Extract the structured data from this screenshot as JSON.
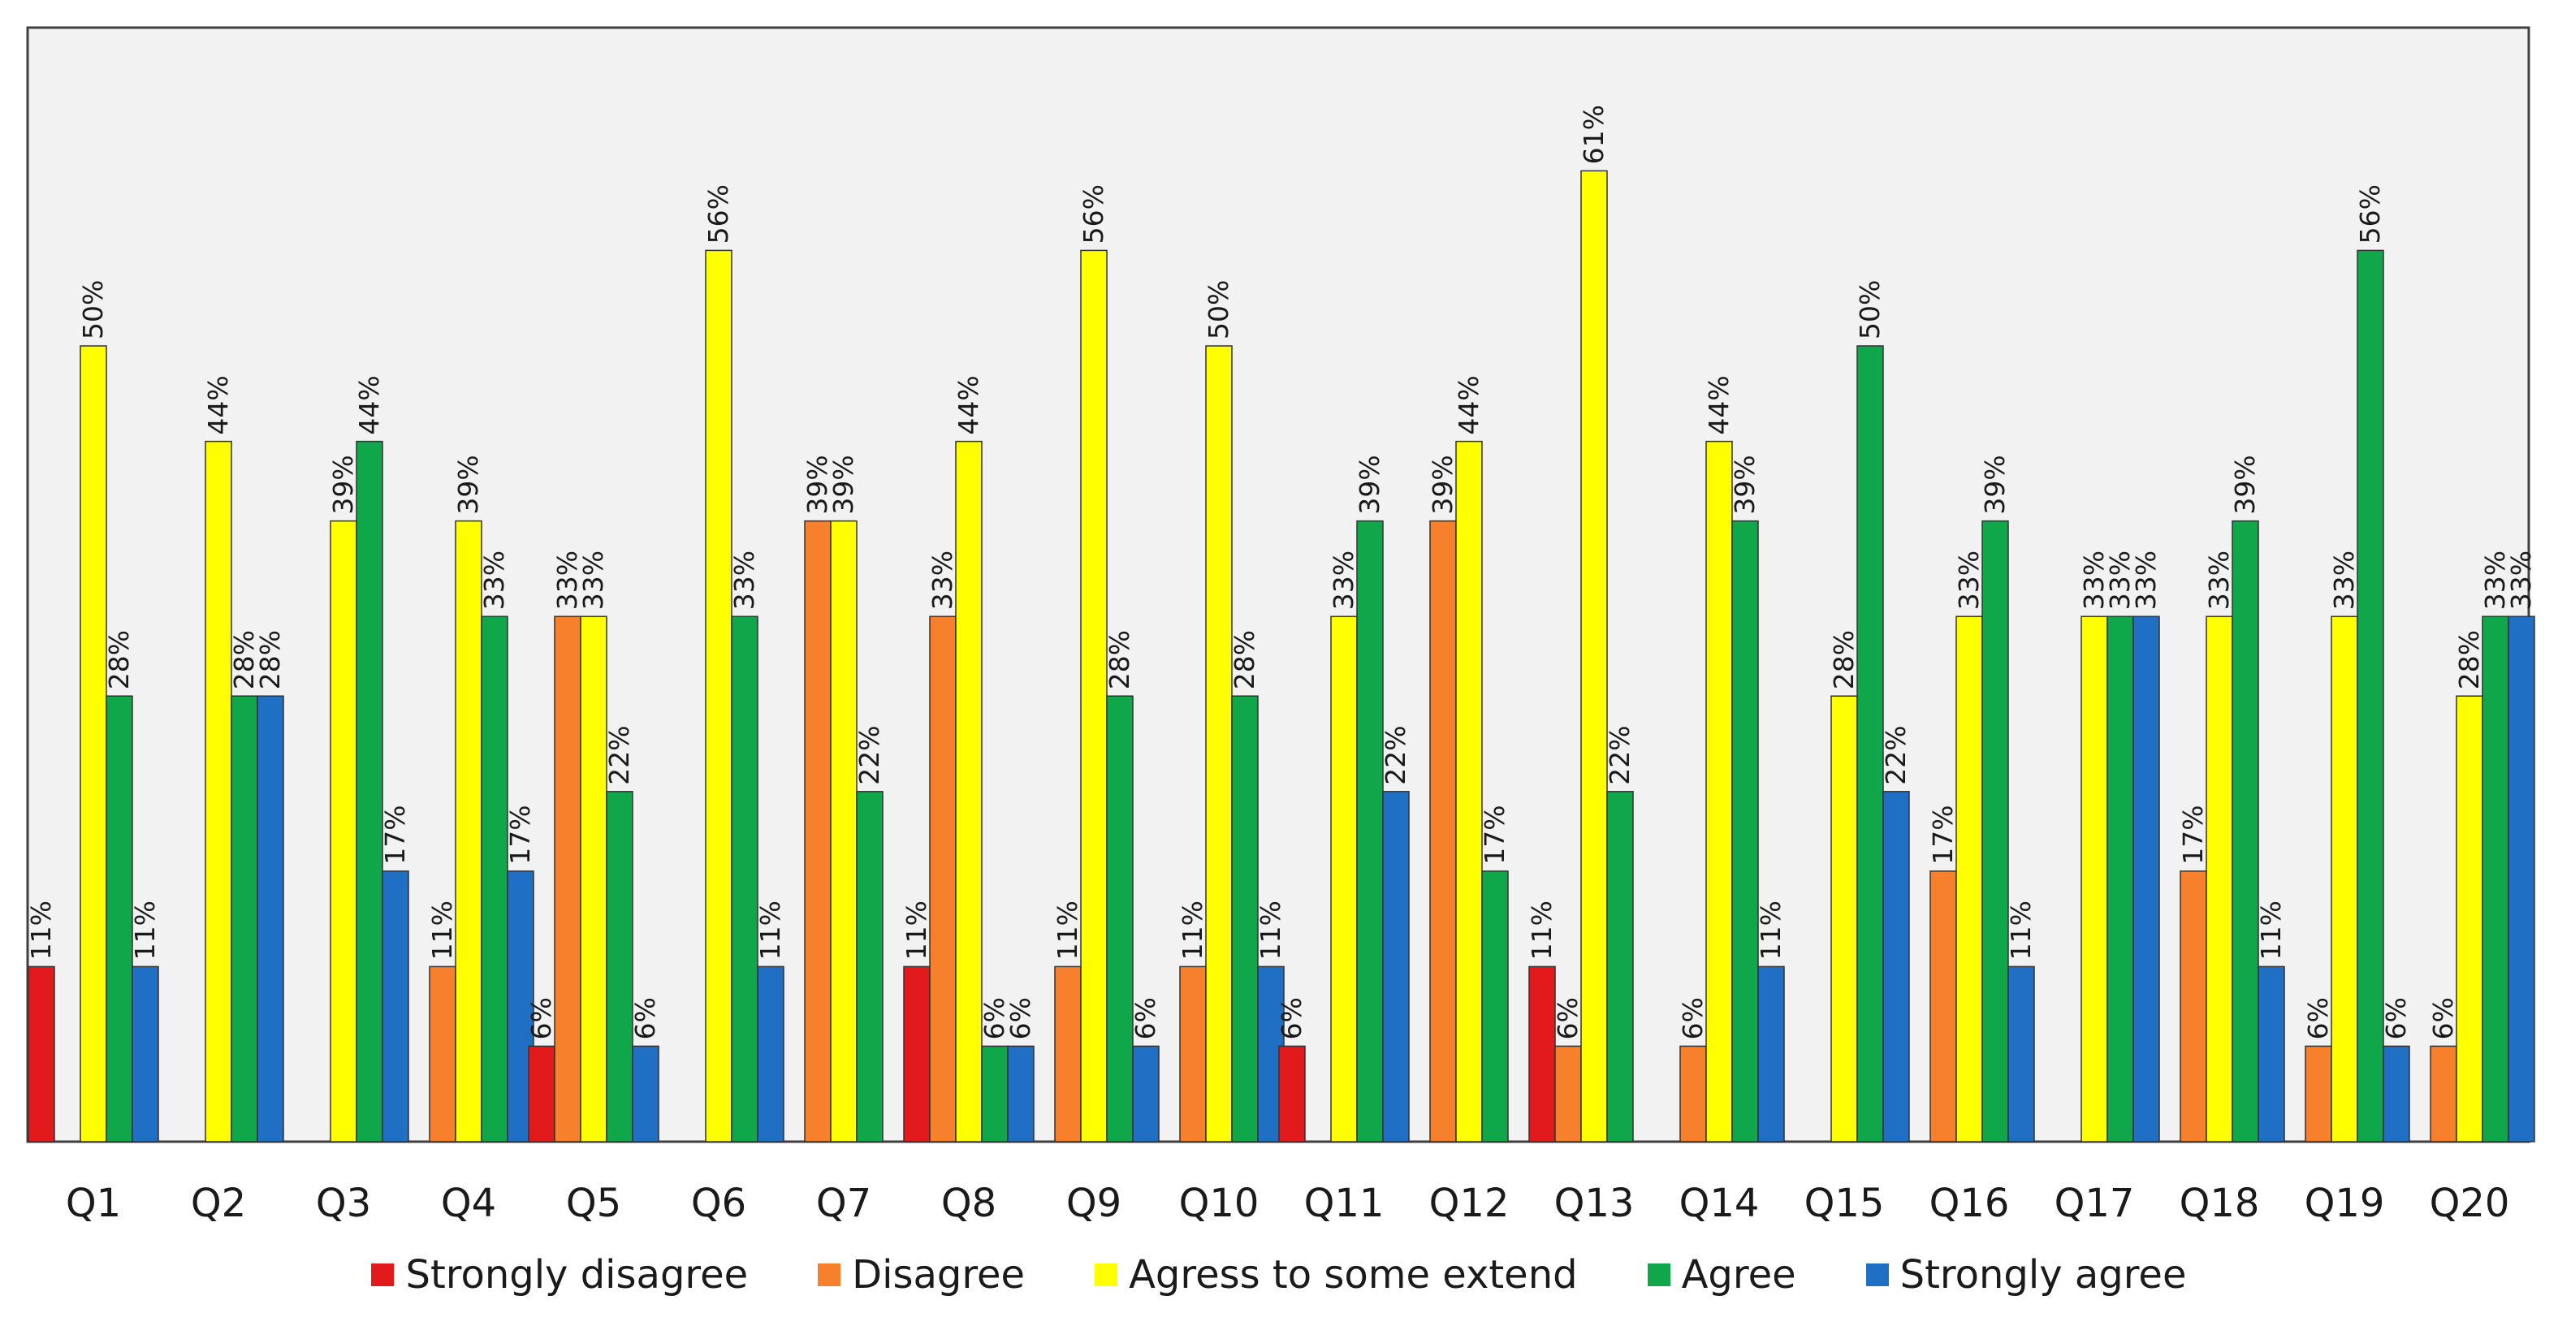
{
  "chart_data": {
    "type": "bar",
    "title": "",
    "xlabel": "",
    "ylabel": "",
    "ylim": [
      0,
      70
    ],
    "grid": false,
    "legend_position": "bottom",
    "categories": [
      "Q1",
      "Q2",
      "Q3",
      "Q4",
      "Q5",
      "Q6",
      "Q7",
      "Q8",
      "Q9",
      "Q10",
      "Q11",
      "Q12",
      "Q13",
      "Q14",
      "Q15",
      "Q16",
      "Q17",
      "Q18",
      "Q19",
      "Q20"
    ],
    "series": [
      {
        "name": "Strongly disagree",
        "color": "#e31a1c",
        "values": [
          11,
          0,
          0,
          0,
          6,
          0,
          0,
          11,
          0,
          0,
          6,
          0,
          11,
          0,
          0,
          0,
          0,
          0,
          0,
          0
        ]
      },
      {
        "name": "Disagree",
        "color": "#f6802b",
        "values": [
          0,
          0,
          0,
          11,
          33,
          0,
          39,
          33,
          11,
          11,
          0,
          39,
          6,
          6,
          0,
          17,
          0,
          17,
          6,
          6
        ]
      },
      {
        "name": "Agress to some extend",
        "color": "#ffff00",
        "values": [
          50,
          44,
          39,
          39,
          33,
          56,
          39,
          44,
          56,
          50,
          33,
          44,
          61,
          44,
          28,
          33,
          33,
          33,
          33,
          28
        ]
      },
      {
        "name": "Agree",
        "color": "#10a64a",
        "values": [
          28,
          28,
          44,
          33,
          22,
          33,
          22,
          6,
          28,
          28,
          39,
          17,
          22,
          39,
          50,
          39,
          33,
          39,
          56,
          33
        ]
      },
      {
        "name": "Strongly agree",
        "color": "#1f6fc4",
        "values": [
          11,
          28,
          17,
          17,
          6,
          11,
          0,
          6,
          6,
          11,
          22,
          0,
          0,
          11,
          22,
          11,
          33,
          11,
          6,
          33
        ]
      }
    ],
    "data_labels": [
      [
        "11%",
        null,
        "50%",
        "28%",
        "11%"
      ],
      [
        null,
        null,
        "44%",
        "28%",
        "28%"
      ],
      [
        null,
        null,
        "39%",
        "44%",
        "17%"
      ],
      [
        null,
        "11%",
        "39%",
        "33%",
        "17%"
      ],
      [
        "6%",
        "33%",
        "33%",
        "22%",
        "6%"
      ],
      [
        null,
        null,
        "56%",
        "33%",
        "11%"
      ],
      [
        null,
        "39%",
        "39%",
        "22%",
        null
      ],
      [
        "11%",
        "33%",
        "44%",
        "6%",
        "6%"
      ],
      [
        null,
        "11%",
        "56%",
        "28%",
        "6%"
      ],
      [
        null,
        "11%",
        "50%",
        "28%",
        "11%"
      ],
      [
        "6%",
        null,
        "33%",
        "39%",
        "22%"
      ],
      [
        null,
        "39%",
        "44%",
        "17%",
        null
      ],
      [
        "11%",
        "6%",
        "61%",
        "22%",
        null
      ],
      [
        null,
        "6%",
        "44%",
        "39%",
        "11%"
      ],
      [
        null,
        null,
        "28%",
        "50%",
        "22%"
      ],
      [
        null,
        "17%",
        "33%",
        "39%",
        "11%"
      ],
      [
        null,
        null,
        "33%",
        "33%",
        "33%"
      ],
      [
        null,
        "17%",
        "33%",
        "39%",
        "11%"
      ],
      [
        null,
        "6%",
        "33%",
        "56%",
        "6%"
      ],
      [
        null,
        "6%",
        "28%",
        "33%",
        "33%"
      ]
    ]
  }
}
